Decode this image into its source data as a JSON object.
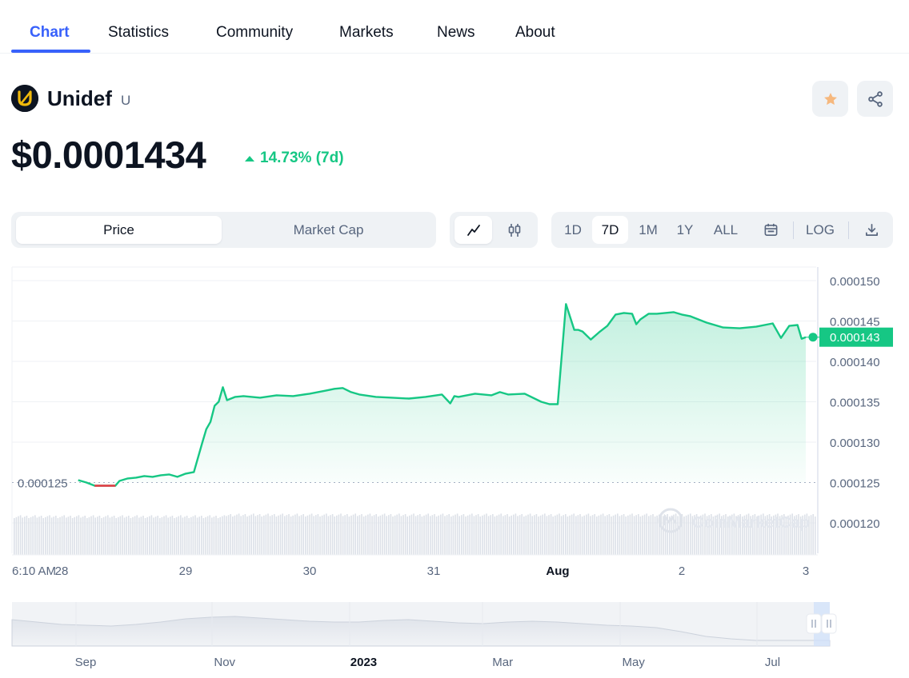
{
  "tabs": [
    {
      "label": "Chart",
      "active": true
    },
    {
      "label": "Statistics"
    },
    {
      "label": "Community"
    },
    {
      "label": "Markets"
    },
    {
      "label": "News"
    },
    {
      "label": "About"
    }
  ],
  "coin": {
    "name": "Unidef",
    "symbol": "U",
    "logo_icon": "unidef-logo-icon",
    "price": "$0.0001434",
    "change": "14.73% (7d)",
    "change_color": "#16c784"
  },
  "actions": {
    "star_icon": "star-icon",
    "share_icon": "share-icon"
  },
  "controls": {
    "type_options": [
      "Price",
      "Market Cap"
    ],
    "type_selected": "Price",
    "style_icons": [
      "line-chart-icon",
      "candlestick-icon"
    ],
    "ranges": [
      "1D",
      "7D",
      "1M",
      "1Y",
      "ALL"
    ],
    "range_selected": "7D",
    "calendar_icon": "calendar-icon",
    "log_label": "LOG",
    "download_icon": "download-icon"
  },
  "watermark": "CoinMarketCap",
  "colors": {
    "up": "#16c784",
    "down": "#ea3943",
    "accent": "#3861fb"
  },
  "chart_data": {
    "type": "area",
    "yticks": [
      "0.000150",
      "0.000145",
      "0.000140",
      "0.000135",
      "0.000130",
      "0.000125",
      "0.000120"
    ],
    "ylim": [
      0.0001165,
      0.0001515
    ],
    "start_label": "0.000125",
    "start_value": 0.000125,
    "current_label": "0.000143",
    "current_value": 0.000143,
    "xticks": [
      {
        "label": "6:10 AM",
        "t": 0
      },
      {
        "label": "28",
        "t": 0.6
      },
      {
        "label": "29",
        "t": 2.1
      },
      {
        "label": "30",
        "t": 3.6
      },
      {
        "label": "31",
        "t": 5.1
      },
      {
        "label": "Aug",
        "t": 6.6,
        "bold": true
      },
      {
        "label": "2",
        "t": 8.1
      },
      {
        "label": "3",
        "t": 9.6
      }
    ],
    "xlim": [
      0,
      9.6
    ],
    "series": [
      {
        "x": [
          0.8,
          0.9,
          1.0,
          1.1,
          1.2,
          1.25,
          1.3,
          1.4,
          1.5,
          1.6,
          1.7,
          1.8,
          1.9,
          2.0,
          2.1,
          2.2,
          2.3,
          2.35,
          2.4,
          2.45,
          2.5,
          2.55,
          2.6,
          2.7,
          2.8,
          3.0,
          3.2,
          3.4,
          3.6,
          3.8,
          3.9,
          4.0,
          4.1,
          4.2,
          4.4,
          4.6,
          4.8,
          5.0,
          5.2,
          5.3,
          5.35,
          5.4,
          5.6,
          5.8,
          5.9,
          6.0,
          6.2,
          6.4,
          6.5,
          6.6,
          6.7,
          6.8,
          6.85,
          6.9,
          7.0,
          7.1,
          7.2,
          7.3,
          7.4,
          7.5,
          7.55,
          7.6,
          7.7,
          7.8,
          8.0,
          8.1,
          8.2,
          8.4,
          8.6,
          8.8,
          9.0,
          9.2,
          9.3,
          9.4,
          9.5,
          9.55,
          9.6
        ],
        "y": [
          0.0001253,
          0.000125,
          0.0001246,
          0.0001246,
          0.0001246,
          0.0001246,
          0.0001252,
          0.0001255,
          0.0001256,
          0.0001258,
          0.0001257,
          0.0001259,
          0.000126,
          0.0001257,
          0.0001261,
          0.0001263,
          0.0001299,
          0.0001316,
          0.0001325,
          0.0001345,
          0.000135,
          0.0001368,
          0.0001352,
          0.0001356,
          0.0001357,
          0.0001355,
          0.0001358,
          0.0001357,
          0.000136,
          0.0001364,
          0.0001366,
          0.0001367,
          0.0001362,
          0.0001359,
          0.0001356,
          0.0001355,
          0.0001354,
          0.0001356,
          0.0001359,
          0.0001348,
          0.0001357,
          0.0001356,
          0.000136,
          0.0001358,
          0.0001362,
          0.0001359,
          0.000136,
          0.000135,
          0.0001347,
          0.0001347,
          0.0001471,
          0.0001439,
          0.0001439,
          0.0001437,
          0.0001427,
          0.0001436,
          0.0001444,
          0.0001458,
          0.000146,
          0.0001459,
          0.0001446,
          0.0001452,
          0.0001459,
          0.0001459,
          0.0001461,
          0.0001458,
          0.0001456,
          0.0001448,
          0.0001442,
          0.0001441,
          0.0001443,
          0.0001447,
          0.0001429,
          0.0001444,
          0.0001445,
          0.0001428,
          0.000143
        ]
      }
    ],
    "navigator_labels": [
      {
        "label": "Sep",
        "t": 0.09
      },
      {
        "label": "Nov",
        "t": 0.26
      },
      {
        "label": "2023",
        "t": 0.43,
        "bold": true
      },
      {
        "label": "Mar",
        "t": 0.6
      },
      {
        "label": "May",
        "t": 0.76
      },
      {
        "label": "Jul",
        "t": 0.93
      }
    ]
  }
}
